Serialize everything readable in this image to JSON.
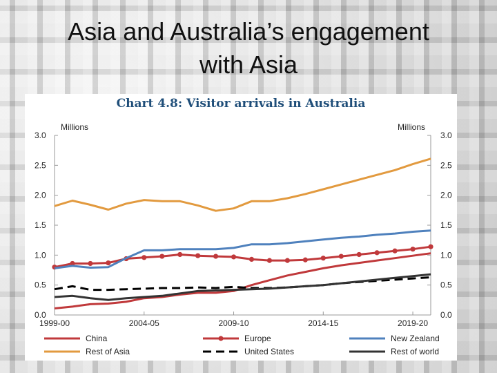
{
  "slide": {
    "title_line1": "Asia and Australia’s engagement",
    "title_line2": "with Asia"
  },
  "chart_data": {
    "type": "line",
    "title": "Chart 4.8: Visitor arrivals in Australia",
    "ylabel_left": "Millions",
    "ylabel_right": "Millions",
    "ylim": [
      0,
      3.0
    ],
    "y_ticks": [
      "0.0",
      "0.5",
      "1.0",
      "1.5",
      "2.0",
      "2.5",
      "3.0"
    ],
    "x": [
      "1999-00",
      "2000-01",
      "2001-02",
      "2002-03",
      "2003-04",
      "2004-05",
      "2005-06",
      "2006-07",
      "2007-08",
      "2008-09",
      "2009-10",
      "2010-11",
      "2011-12",
      "2012-13",
      "2013-14",
      "2014-15",
      "2015-16",
      "2016-17",
      "2017-18",
      "2018-19",
      "2019-20",
      "2020-21"
    ],
    "x_tick_labels": [
      "1999-00",
      "2004-05",
      "2009-10",
      "2014-15",
      "2019-20"
    ],
    "legend_placement": "bottom",
    "grid": false,
    "series": [
      {
        "name": "China",
        "color": "#c0393b",
        "style": "solid",
        "markers": false,
        "values": [
          0.11,
          0.14,
          0.18,
          0.19,
          0.22,
          0.28,
          0.3,
          0.34,
          0.37,
          0.37,
          0.4,
          0.5,
          0.58,
          0.66,
          0.72,
          0.78,
          0.83,
          0.87,
          0.91,
          0.95,
          0.99,
          1.03
        ]
      },
      {
        "name": "Europe",
        "color": "#c0393b",
        "style": "solid",
        "markers": true,
        "values": [
          0.8,
          0.86,
          0.86,
          0.87,
          0.94,
          0.96,
          0.98,
          1.01,
          0.99,
          0.98,
          0.97,
          0.93,
          0.91,
          0.91,
          0.92,
          0.95,
          0.98,
          1.01,
          1.04,
          1.07,
          1.1,
          1.14
        ]
      },
      {
        "name": "New Zealand",
        "color": "#4f81bd",
        "style": "solid",
        "markers": false,
        "values": [
          0.78,
          0.82,
          0.79,
          0.8,
          0.95,
          1.08,
          1.08,
          1.1,
          1.1,
          1.1,
          1.12,
          1.18,
          1.18,
          1.2,
          1.23,
          1.26,
          1.29,
          1.31,
          1.34,
          1.36,
          1.39,
          1.41
        ]
      },
      {
        "name": "Rest of Asia",
        "color": "#e29a3f",
        "style": "solid",
        "markers": false,
        "values": [
          1.82,
          1.91,
          1.84,
          1.76,
          1.86,
          1.92,
          1.9,
          1.9,
          1.83,
          1.74,
          1.78,
          1.9,
          1.9,
          1.95,
          2.02,
          2.1,
          2.18,
          2.26,
          2.34,
          2.42,
          2.52,
          2.61
        ]
      },
      {
        "name": "United States",
        "color": "#000000",
        "style": "dashed",
        "markers": false,
        "values": [
          0.43,
          0.48,
          0.42,
          0.42,
          0.43,
          0.44,
          0.45,
          0.45,
          0.46,
          0.45,
          0.47,
          0.45,
          0.45,
          0.46,
          0.48,
          0.5,
          0.53,
          0.55,
          0.57,
          0.59,
          0.61,
          0.63
        ]
      },
      {
        "name": "Rest of world",
        "color": "#333333",
        "style": "solid",
        "markers": false,
        "values": [
          0.3,
          0.32,
          0.28,
          0.25,
          0.28,
          0.3,
          0.32,
          0.36,
          0.4,
          0.41,
          0.42,
          0.43,
          0.44,
          0.46,
          0.48,
          0.5,
          0.53,
          0.56,
          0.59,
          0.62,
          0.65,
          0.68
        ]
      }
    ]
  }
}
